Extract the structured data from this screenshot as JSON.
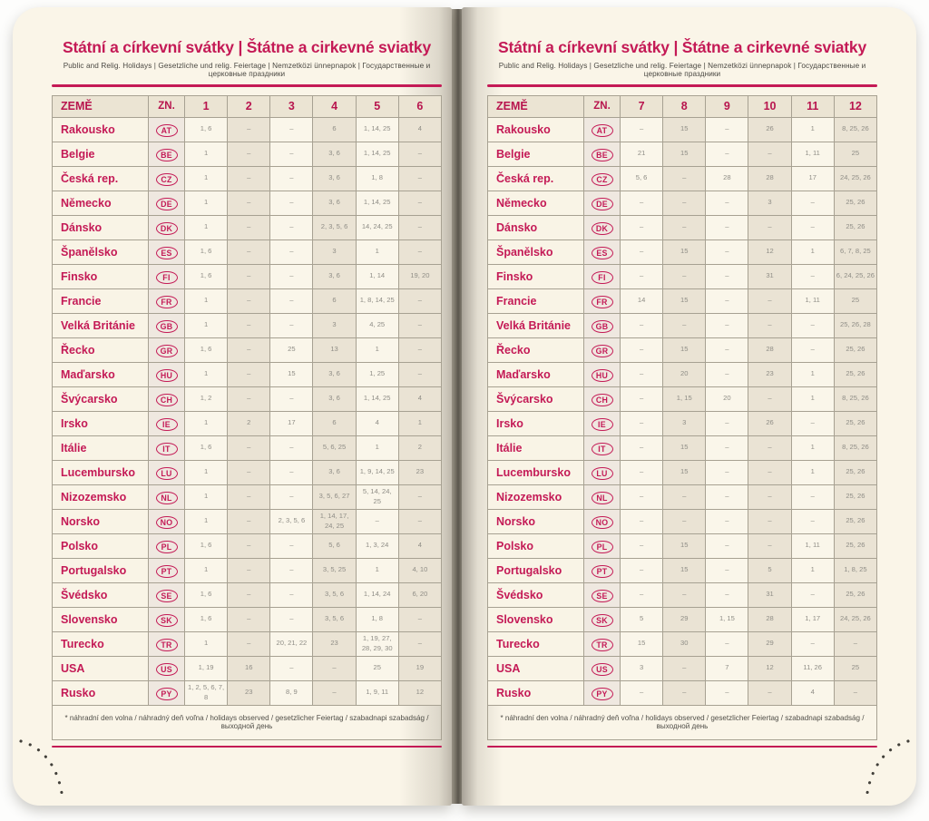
{
  "page_title": "Státní a církevní svátky | Štátne a cirkevné sviatky",
  "subtitle": "Public and Relig. Holidays | Gesetzliche und relig. Feiertage | Nemzetközi ünnepnapok | Государственные и церковные праздники",
  "footnote": "* náhradní den volna / náhradný deň voľna / holidays observed / gesetzlicher Feiertag / szabadnapi szabadság / выходной день",
  "colors": {
    "accent_magenta": "#c41a56",
    "page_cream": "#faf5e8",
    "cell_shaded": "#eae3d4",
    "value_gray": "#8f8d86"
  },
  "table": {
    "country_header": "ZEMĚ",
    "code_header": "ZN.",
    "pages": [
      {
        "months": [
          "1",
          "2",
          "3",
          "4",
          "5",
          "6"
        ],
        "rows": [
          {
            "country": "Rakousko",
            "code": "AT",
            "values": [
              "1, 6",
              "–",
              "–",
              "6",
              "1, 14, 25",
              "4"
            ]
          },
          {
            "country": "Belgie",
            "code": "BE",
            "values": [
              "1",
              "–",
              "–",
              "3, 6",
              "1, 14, 25",
              "–"
            ]
          },
          {
            "country": "Česká rep.",
            "code": "CZ",
            "values": [
              "1",
              "–",
              "–",
              "3, 6",
              "1, 8",
              "–"
            ]
          },
          {
            "country": "Německo",
            "code": "DE",
            "values": [
              "1",
              "–",
              "–",
              "3, 6",
              "1, 14, 25",
              "–"
            ]
          },
          {
            "country": "Dánsko",
            "code": "DK",
            "values": [
              "1",
              "–",
              "–",
              "2, 3, 5, 6",
              "14, 24, 25",
              "–"
            ]
          },
          {
            "country": "Španělsko",
            "code": "ES",
            "values": [
              "1, 6",
              "–",
              "–",
              "3",
              "1",
              "–"
            ]
          },
          {
            "country": "Finsko",
            "code": "FI",
            "values": [
              "1, 6",
              "–",
              "–",
              "3, 6",
              "1, 14",
              "19, 20"
            ]
          },
          {
            "country": "Francie",
            "code": "FR",
            "values": [
              "1",
              "–",
              "–",
              "6",
              "1, 8, 14, 25",
              "–"
            ]
          },
          {
            "country": "Velká Británie",
            "code": "GB",
            "values": [
              "1",
              "–",
              "–",
              "3",
              "4, 25",
              "–"
            ]
          },
          {
            "country": "Řecko",
            "code": "GR",
            "values": [
              "1, 6",
              "–",
              "25",
              "13",
              "1",
              "–"
            ]
          },
          {
            "country": "Maďarsko",
            "code": "HU",
            "values": [
              "1",
              "–",
              "15",
              "3, 6",
              "1, 25",
              "–"
            ]
          },
          {
            "country": "Švýcarsko",
            "code": "CH",
            "values": [
              "1, 2",
              "–",
              "–",
              "3, 6",
              "1, 14, 25",
              "4"
            ]
          },
          {
            "country": "Irsko",
            "code": "IE",
            "values": [
              "1",
              "2",
              "17",
              "6",
              "4",
              "1"
            ]
          },
          {
            "country": "Itálie",
            "code": "IT",
            "values": [
              "1, 6",
              "–",
              "–",
              "5, 6, 25",
              "1",
              "2"
            ]
          },
          {
            "country": "Lucembursko",
            "code": "LU",
            "values": [
              "1",
              "–",
              "–",
              "3, 6",
              "1, 9, 14, 25",
              "23"
            ]
          },
          {
            "country": "Nizozemsko",
            "code": "NL",
            "values": [
              "1",
              "–",
              "–",
              "3, 5, 6, 27",
              "5, 14, 24, 25",
              "–"
            ]
          },
          {
            "country": "Norsko",
            "code": "NO",
            "values": [
              "1",
              "–",
              "2, 3, 5, 6",
              "1, 14, 17, 24, 25",
              "–",
              "–"
            ]
          },
          {
            "country": "Polsko",
            "code": "PL",
            "values": [
              "1, 6",
              "–",
              "–",
              "5, 6",
              "1, 3, 24",
              "4"
            ]
          },
          {
            "country": "Portugalsko",
            "code": "PT",
            "values": [
              "1",
              "–",
              "–",
              "3, 5, 25",
              "1",
              "4, 10"
            ]
          },
          {
            "country": "Švédsko",
            "code": "SE",
            "values": [
              "1, 6",
              "–",
              "–",
              "3, 5, 6",
              "1, 14, 24",
              "6, 20"
            ]
          },
          {
            "country": "Slovensko",
            "code": "SK",
            "values": [
              "1, 6",
              "–",
              "–",
              "3, 5, 6",
              "1, 8",
              "–"
            ]
          },
          {
            "country": "Turecko",
            "code": "TR",
            "values": [
              "1",
              "–",
              "20, 21, 22",
              "23",
              "1, 19, 27, 28, 29, 30",
              "–"
            ]
          },
          {
            "country": "USA",
            "code": "US",
            "values": [
              "1, 19",
              "16",
              "–",
              "–",
              "25",
              "19"
            ]
          },
          {
            "country": "Rusko",
            "code": "PY",
            "values": [
              "1, 2, 5, 6, 7, 8",
              "23",
              "8, 9",
              "–",
              "1, 9, 11",
              "12"
            ]
          }
        ]
      },
      {
        "months": [
          "7",
          "8",
          "9",
          "10",
          "11",
          "12"
        ],
        "rows": [
          {
            "country": "Rakousko",
            "code": "AT",
            "values": [
              "–",
              "15",
              "–",
              "26",
              "1",
              "8, 25, 26"
            ]
          },
          {
            "country": "Belgie",
            "code": "BE",
            "values": [
              "21",
              "15",
              "–",
              "–",
              "1, 11",
              "25"
            ]
          },
          {
            "country": "Česká rep.",
            "code": "CZ",
            "values": [
              "5, 6",
              "–",
              "28",
              "28",
              "17",
              "24, 25, 26"
            ]
          },
          {
            "country": "Německo",
            "code": "DE",
            "values": [
              "–",
              "–",
              "–",
              "3",
              "–",
              "25, 26"
            ]
          },
          {
            "country": "Dánsko",
            "code": "DK",
            "values": [
              "–",
              "–",
              "–",
              "–",
              "–",
              "25, 26"
            ]
          },
          {
            "country": "Španělsko",
            "code": "ES",
            "values": [
              "–",
              "15",
              "–",
              "12",
              "1",
              "6, 7, 8, 25"
            ]
          },
          {
            "country": "Finsko",
            "code": "FI",
            "values": [
              "–",
              "–",
              "–",
              "31",
              "–",
              "6, 24, 25, 26"
            ]
          },
          {
            "country": "Francie",
            "code": "FR",
            "values": [
              "14",
              "15",
              "–",
              "–",
              "1, 11",
              "25"
            ]
          },
          {
            "country": "Velká Británie",
            "code": "GB",
            "values": [
              "–",
              "–",
              "–",
              "–",
              "–",
              "25, 26, 28"
            ]
          },
          {
            "country": "Řecko",
            "code": "GR",
            "values": [
              "–",
              "15",
              "–",
              "28",
              "–",
              "25, 26"
            ]
          },
          {
            "country": "Maďarsko",
            "code": "HU",
            "values": [
              "–",
              "20",
              "–",
              "23",
              "1",
              "25, 26"
            ]
          },
          {
            "country": "Švýcarsko",
            "code": "CH",
            "values": [
              "–",
              "1, 15",
              "20",
              "–",
              "1",
              "8, 25, 26"
            ]
          },
          {
            "country": "Irsko",
            "code": "IE",
            "values": [
              "–",
              "3",
              "–",
              "26",
              "–",
              "25, 26"
            ]
          },
          {
            "country": "Itálie",
            "code": "IT",
            "values": [
              "–",
              "15",
              "–",
              "–",
              "1",
              "8, 25, 26"
            ]
          },
          {
            "country": "Lucembursko",
            "code": "LU",
            "values": [
              "–",
              "15",
              "–",
              "–",
              "1",
              "25, 26"
            ]
          },
          {
            "country": "Nizozemsko",
            "code": "NL",
            "values": [
              "–",
              "–",
              "–",
              "–",
              "–",
              "25, 26"
            ]
          },
          {
            "country": "Norsko",
            "code": "NO",
            "values": [
              "–",
              "–",
              "–",
              "–",
              "–",
              "25, 26"
            ]
          },
          {
            "country": "Polsko",
            "code": "PL",
            "values": [
              "–",
              "15",
              "–",
              "–",
              "1, 11",
              "25, 26"
            ]
          },
          {
            "country": "Portugalsko",
            "code": "PT",
            "values": [
              "–",
              "15",
              "–",
              "5",
              "1",
              "1, 8, 25"
            ]
          },
          {
            "country": "Švédsko",
            "code": "SE",
            "values": [
              "–",
              "–",
              "–",
              "31",
              "–",
              "25, 26"
            ]
          },
          {
            "country": "Slovensko",
            "code": "SK",
            "values": [
              "5",
              "29",
              "1, 15",
              "28",
              "1, 17",
              "24, 25, 26"
            ]
          },
          {
            "country": "Turecko",
            "code": "TR",
            "values": [
              "15",
              "30",
              "–",
              "29",
              "–",
              "–"
            ]
          },
          {
            "country": "USA",
            "code": "US",
            "values": [
              "3",
              "–",
              "7",
              "12",
              "11, 26",
              "25"
            ]
          },
          {
            "country": "Rusko",
            "code": "PY",
            "values": [
              "–",
              "–",
              "–",
              "–",
              "4",
              "–"
            ]
          }
        ]
      }
    ]
  }
}
